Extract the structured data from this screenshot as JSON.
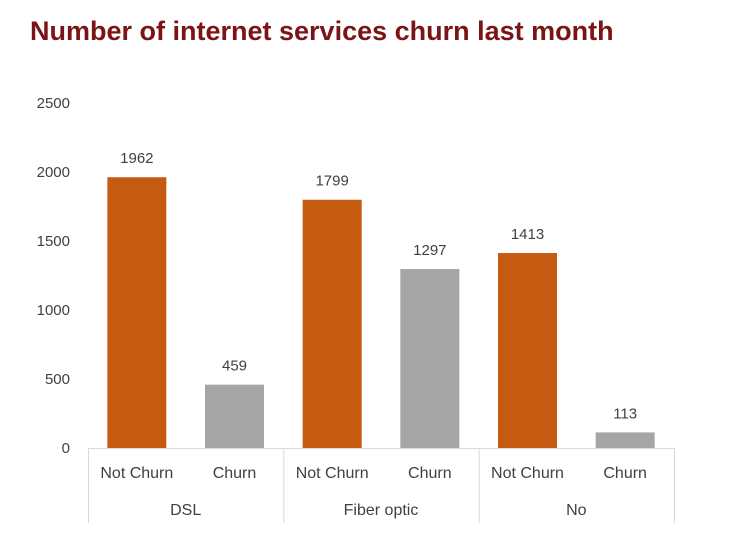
{
  "chart_data": {
    "type": "bar",
    "title": "Number of internet services churn last month",
    "xlabel": "",
    "ylabel": "",
    "ylim": [
      0,
      2500
    ],
    "yticks": [
      "0",
      "500",
      "1000",
      "1500",
      "2000",
      "2500"
    ],
    "grid": false,
    "legend": "none",
    "groups": [
      {
        "name": "DSL",
        "bars": [
          {
            "label": "Not Churn",
            "value": 1962,
            "color": "#c55a11"
          },
          {
            "label": "Churn",
            "value": 459,
            "color": "#a5a5a5"
          }
        ]
      },
      {
        "name": "Fiber optic",
        "bars": [
          {
            "label": "Not Churn",
            "value": 1799,
            "color": "#c55a11"
          },
          {
            "label": "Churn",
            "value": 1297,
            "color": "#a5a5a5"
          }
        ]
      },
      {
        "name": "No",
        "bars": [
          {
            "label": "Not Churn",
            "value": 1413,
            "color": "#c55a11"
          },
          {
            "label": "Churn",
            "value": 113,
            "color": "#a5a5a5"
          }
        ]
      }
    ]
  }
}
